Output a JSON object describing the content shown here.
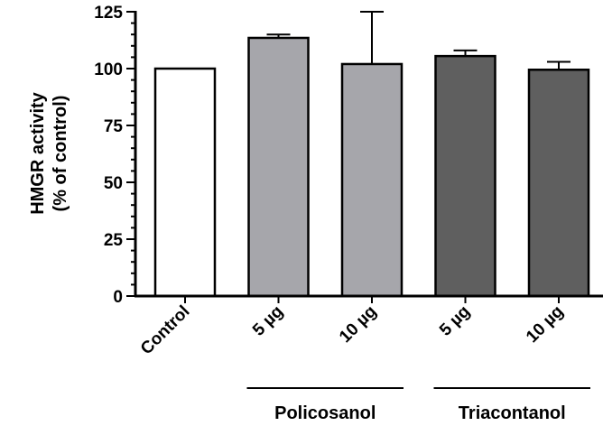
{
  "chart_data": {
    "type": "bar",
    "ylabel_lines": [
      "HMGR activity",
      "(% of control)"
    ],
    "categories": [
      "Control",
      "5 µg",
      "10 µg",
      "5 µg",
      "10 µg"
    ],
    "values": [
      100,
      113.5,
      102,
      105.5,
      99.5
    ],
    "error_upper": [
      0,
      1.5,
      23,
      2.5,
      3.5
    ],
    "bar_colors": [
      "#ffffff",
      "#a6a6ab",
      "#a6a6ab",
      "#5f5f5f",
      "#5f5f5f"
    ],
    "ylim": [
      0,
      125
    ],
    "yticks": [
      "0",
      "25",
      "50",
      "75",
      "100",
      "125"
    ],
    "groups": [
      {
        "label": "Policosanol",
        "categories": [
          1,
          2
        ]
      },
      {
        "label": "Triacontanol",
        "categories": [
          3,
          4
        ]
      }
    ],
    "grid": false,
    "legend": "none"
  }
}
